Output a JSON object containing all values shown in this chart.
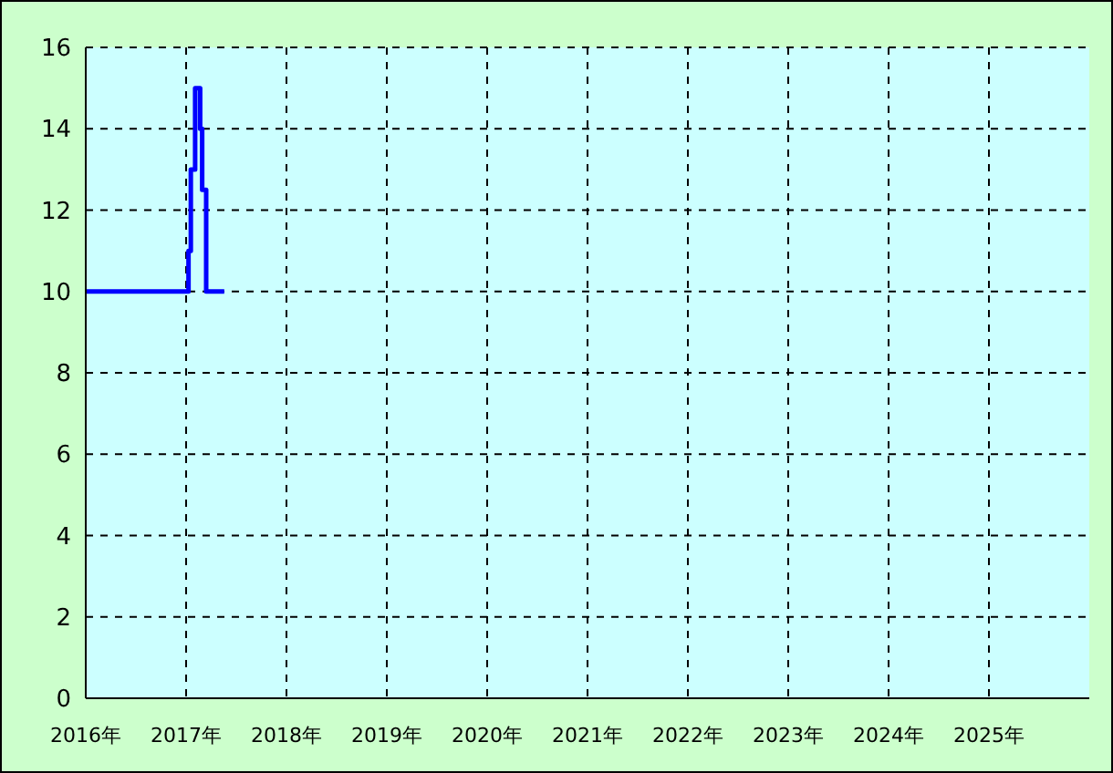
{
  "chart_data": {
    "type": "step",
    "x": [
      2016,
      2017.024,
      2017.047,
      2017.09,
      2017.14,
      2017.16,
      2017.2,
      2017.38
    ],
    "series": [
      {
        "color": "#0000ff",
        "values": [
          10,
          11,
          13,
          15,
          14,
          12.5,
          10,
          10
        ]
      }
    ],
    "xlim": [
      2016,
      2026
    ],
    "xticks": [
      {
        "value": 2016,
        "label": "2016年"
      },
      {
        "value": 2017,
        "label": "2017年"
      },
      {
        "value": 2018,
        "label": "2018年"
      },
      {
        "value": 2019,
        "label": "2019年"
      },
      {
        "value": 2020,
        "label": "2020年"
      },
      {
        "value": 2021,
        "label": "2021年"
      },
      {
        "value": 2022,
        "label": "2022年"
      },
      {
        "value": 2023,
        "label": "2023年"
      },
      {
        "value": 2024,
        "label": "2024年"
      },
      {
        "value": 2025,
        "label": "2025年"
      }
    ],
    "ylim": [
      0,
      16
    ],
    "yticks": [
      0,
      2,
      4,
      6,
      8,
      10,
      12,
      14,
      16
    ],
    "grid": true,
    "legend": false,
    "marker": "none",
    "line_style": "solid"
  }
}
